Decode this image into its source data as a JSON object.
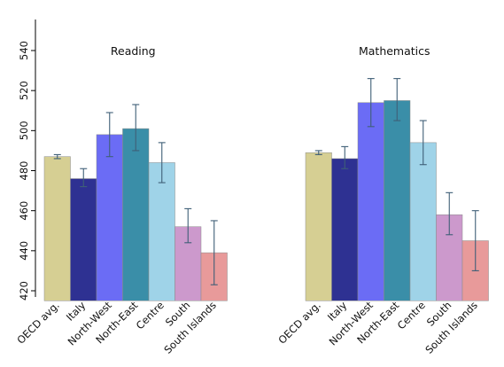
{
  "chart_data": {
    "type": "bar",
    "ylim": [
      415,
      555
    ],
    "yticks": [
      420,
      440,
      460,
      480,
      500,
      520,
      540
    ],
    "grid": false,
    "categories": [
      "OECD avg.",
      "Italy",
      "North-West",
      "North-East",
      "Centre",
      "South",
      "South Islands"
    ],
    "colors": [
      "#d6cf93",
      "#2e3192",
      "#6b6cf5",
      "#3a8ea8",
      "#9fd3e8",
      "#cc99cc",
      "#e89a9a"
    ],
    "panels": [
      {
        "title": "Reading",
        "values": [
          487,
          476,
          498,
          501,
          484,
          452,
          439
        ],
        "error_low": [
          486,
          472,
          487,
          490,
          474,
          444,
          423
        ],
        "error_high": [
          488,
          481,
          509,
          513,
          494,
          461,
          455
        ]
      },
      {
        "title": "Mathematics",
        "values": [
          489,
          486,
          514,
          515,
          494,
          458,
          445
        ],
        "error_low": [
          488,
          481,
          502,
          505,
          483,
          448,
          430
        ],
        "error_high": [
          490,
          492,
          526,
          526,
          505,
          469,
          460
        ]
      }
    ]
  }
}
